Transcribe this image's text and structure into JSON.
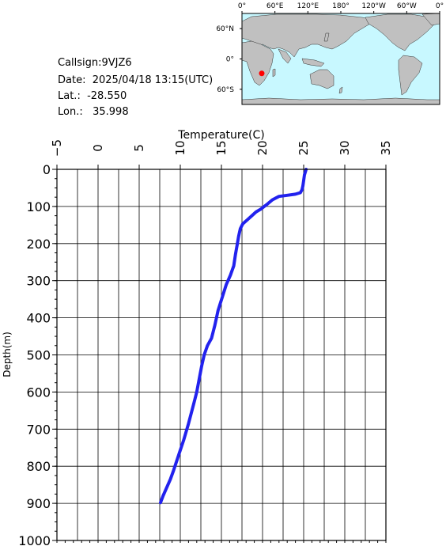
{
  "info": {
    "callsign": "Callsign:9VJZ6",
    "date": "Date:  2025/04/18 13:15(UTC)",
    "lat": "Lat.:  -28.550",
    "lon": "Lon.:   35.998"
  },
  "map": {
    "lon_ticks": [
      "0°",
      "60°E",
      "120°E",
      "180°",
      "120°W",
      "60°W",
      "0°"
    ],
    "lat_ticks": [
      "60°N",
      "0°",
      "60°S"
    ],
    "station": {
      "lat": -28.55,
      "lon": 35.998
    },
    "colors": {
      "ocean": "#c8f8ff",
      "land": "#c0c0c0",
      "marker": "#ff0000"
    }
  },
  "chart_data": {
    "type": "line",
    "xlabel": "Temperature(C)",
    "ylabel": "Depth(m)",
    "xlim": [
      -5,
      35
    ],
    "ylim": [
      0,
      1000
    ],
    "x_ticks": [
      "-5",
      "0",
      "5",
      "10",
      "15",
      "20",
      "25",
      "30",
      "35"
    ],
    "y_ticks": [
      "0",
      "100",
      "200",
      "300",
      "400",
      "500",
      "600",
      "700",
      "800",
      "900",
      "1000"
    ],
    "grid": true,
    "series_color": "#2222ee",
    "series": [
      {
        "points": [
          [
            25.3,
            0
          ],
          [
            25.1,
            15
          ],
          [
            25.0,
            30
          ],
          [
            24.9,
            45
          ],
          [
            24.8,
            55
          ],
          [
            24.6,
            63
          ],
          [
            24.0,
            67
          ],
          [
            23.0,
            70
          ],
          [
            22.0,
            73
          ],
          [
            21.2,
            82
          ],
          [
            20.5,
            95
          ],
          [
            19.8,
            107
          ],
          [
            19.2,
            115
          ],
          [
            18.7,
            125
          ],
          [
            18.2,
            135
          ],
          [
            17.6,
            147
          ],
          [
            17.3,
            160
          ],
          [
            17.1,
            180
          ],
          [
            16.9,
            205
          ],
          [
            16.7,
            230
          ],
          [
            16.5,
            260
          ],
          [
            16.1,
            285
          ],
          [
            15.6,
            310
          ],
          [
            15.1,
            345
          ],
          [
            14.6,
            380
          ],
          [
            14.2,
            420
          ],
          [
            13.8,
            455
          ],
          [
            13.3,
            475
          ],
          [
            12.9,
            500
          ],
          [
            12.6,
            530
          ],
          [
            12.3,
            565
          ],
          [
            12.0,
            600
          ],
          [
            11.6,
            635
          ],
          [
            11.0,
            685
          ],
          [
            10.4,
            730
          ],
          [
            9.8,
            770
          ],
          [
            9.2,
            810
          ],
          [
            8.8,
            835
          ],
          [
            8.3,
            860
          ],
          [
            7.9,
            880
          ],
          [
            7.6,
            898
          ]
        ]
      }
    ]
  }
}
